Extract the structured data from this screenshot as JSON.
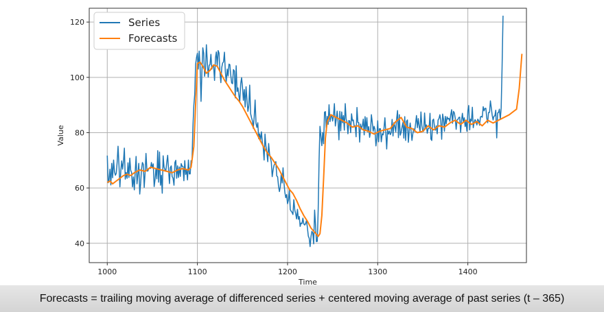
{
  "caption": "Forecasts = trailing moving average of differenced series + centered moving average of past series (t – 365)",
  "chart_data": {
    "type": "line",
    "xlabel": "Time",
    "ylabel": "Value",
    "xlim": [
      980,
      1465
    ],
    "ylim": [
      33,
      125
    ],
    "xticks": [
      1000,
      1100,
      1200,
      1300,
      1400
    ],
    "yticks": [
      40,
      60,
      80,
      100,
      120
    ],
    "grid": true,
    "legend_placement": "top-left",
    "series": [
      {
        "name": "Series",
        "color": "#1f77b4",
        "x_start": 1000,
        "x_step": 1,
        "values": [
          71.7,
          61.9,
          63.0,
          66.8,
          61.1,
          68.9,
          63.7,
          70.1,
          65.9,
          64.6,
          65.3,
          69.4,
          75.1,
          68.4,
          60.4,
          66.1,
          69.8,
          66.8,
          69.6,
          74.4,
          63.2,
          65.6,
          63.5,
          69.1,
          63.8,
          70.8,
          66.4,
          65.6,
          60.4,
          64.0,
          59.3,
          66.1,
          71.4,
          61.5,
          64.8,
          68.9,
          57.8,
          61.6,
          66.8,
          69.2,
          68.5,
          60.2,
          65.5,
          72.5,
          66.2,
          66.1,
          67.1,
          67.1,
          67.1,
          69.2,
          67.3,
          68.7,
          60.5,
          63.0,
          67.1,
          63.3,
          73.5,
          62.1,
          73.0,
          61.0,
          64.6,
          58.1,
          71.6,
          67.6,
          66.6,
          66.1,
          69.3,
          71.8,
          66.5,
          61.6,
          67.4,
          68.0,
          64.1,
          63.6,
          61.0,
          69.2,
          70.0,
          63.5,
          68.0,
          63.8,
          67.6,
          64.2,
          68.8,
          67.9,
          67.8,
          62.6,
          69.9,
          64.9,
          66.6,
          62.9,
          70.1,
          65.1,
          65.1,
          69.9,
          69.2,
          81.6,
          89.8,
          93.8,
          104.7,
          107.1,
          108.7,
          103.0,
          109.5,
          104.2,
          91.3,
          102.1,
          110.7,
          108.7,
          100.4,
          102.8,
          111.8,
          105.3,
          100.1,
          104.3,
          104.7,
          108.3,
          103.0,
          104.2,
          104.1,
          98.9,
          107.0,
          109.2,
          104.1,
          109.7,
          108.8,
          102.2,
          98.1,
          103.6,
          105.2,
          105.6,
          109.1,
          102.1,
          98.3,
          103.0,
          100.5,
          104.8,
          104.6,
          100.8,
          98.0,
          97.7,
          102.8,
          102.3,
          92.6,
          104.2,
          94.9,
          96.2,
          93.5,
          91.2,
          97.7,
          99.9,
          96.4,
          91.7,
          95.6,
          89.3,
          96.6,
          92.0,
          87.7,
          89.7,
          97.2,
          86.9,
          85.5,
          84.3,
          81.6,
          85.8,
          91.8,
          83.4,
          81.9,
          83.6,
          77.8,
          79.6,
          77.4,
          80.3,
          76.5,
          74.7,
          70.1,
          79.5,
          75.2,
          73.2,
          69.5,
          76.1,
          72.4,
          70.9,
          69.3,
          64.1,
          66.5,
          68.2,
          68.8,
          69.5,
          64.4,
          64.0,
          60.7,
          58.7,
          60.4,
          65.3,
          61.8,
          67.3,
          62.0,
          58.5,
          56.5,
          57.6,
          54.3,
          55.7,
          59.5,
          52.2,
          51.6,
          51.2,
          50.4,
          55.8,
          52.0,
          50.7,
          48.8,
          52.3,
          48.7,
          49.7,
          46.1,
          47.3,
          47.1,
          49.1,
          47.0,
          46.6,
          47.1,
          48.2,
          45.8,
          42.6,
          41.8,
          38.8,
          42.4,
          44.3,
          43.8,
          39.8,
          52.0,
          46.8,
          40.6,
          40.7,
          52.3,
          70.2,
          82.3,
          78.9,
          75.3,
          80.1,
          76.0,
          87.4,
          87.6,
          80.6,
          85.9,
          83.0,
          90.1,
          84.0,
          85.7,
          86.4,
          84.2,
          86.1,
          90.5,
          82.4,
          84.9,
          87.8,
          84.2,
          77.4,
          87.7,
          80.6,
          87.5,
          83.6,
          86.2,
          80.9,
          90.5,
          84.9,
          83.9,
          79.6,
          84.4,
          84.2,
          80.0,
          86.8,
          84.3,
          84.6,
          82.1,
          82.5,
          78.5,
          89.1,
          83.7,
          83.6,
          76.6,
          83.1,
          81.3,
          82.6,
          84.9,
          79.2,
          85.8,
          80.9,
          85.4,
          80.3,
          82.2,
          78.3,
          80.2,
          86.5,
          83.7,
          80.5,
          82.3,
          81.2,
          75.2,
          78.0,
          84.3,
          76.7,
          81.4,
          81.4,
          76.7,
          79.6,
          79.2,
          81.7,
          85.4,
          80.1,
          74.1,
          80.9,
          79.5,
          80.6,
          79.3,
          80.1,
          84.8,
          78.8,
          83.6,
          82.4,
          80.3,
          85.1,
          88.0,
          78.2,
          86.5,
          79.1,
          80.1,
          82.1,
          83.7,
          78.0,
          85.8,
          77.2,
          84.1,
          84.6,
          76.5,
          80.8,
          83.5,
          80.6,
          77.2,
          79.7,
          81.4,
          80.4,
          83.3,
          86.2,
          81.8,
          85.1,
          82.3,
          80.3,
          87.5,
          82.6,
          80.6,
          80.5,
          87.1,
          81.7,
          82.8,
          79.8,
          81.5,
          81.6,
          87.0,
          77.7,
          77.2,
          84.5,
          84.9,
          82.2,
          80.9,
          82.5,
          79.6,
          84.6,
          85.1,
          86.5,
          84.4,
          77.6,
          86.7,
          84.8,
          80.5,
          85.9,
          83.2,
          85.7,
          84.9,
          85.2,
          84.1,
          86.5,
          88.3,
          83.4,
          87.7,
          87.2,
          85.3,
          81.2,
          84.6,
          84.8,
          85.5,
          85.6,
          80.1,
          84.3,
          87.0,
          83.7,
          85.4,
          82.2,
          84.0,
          80.5,
          87.8,
          89.8,
          81.0,
          84.9,
          84.2,
          89.2,
          81.8,
          83.7,
          84.7,
          84.1,
          82.8,
          84.9,
          84.3,
          82.7,
          85.7,
          85.9,
          85.6,
          89.4,
          87.9,
          88.8,
          88.8,
          85.2,
          83.6,
          87.3,
          87.3,
          91.5,
          89.0,
          86.3,
          84.6,
          86.0,
          86.1,
          88.1,
          78.1,
          87.1,
          87.3,
          88.5,
          84.8,
          89.0,
          103.6,
          122.3
        ]
      },
      {
        "name": "Forecasts",
        "color": "#ff7f0e",
        "x": [
          1000,
          1003,
          1006,
          1010,
          1014,
          1018,
          1022,
          1026,
          1030,
          1036,
          1042,
          1048,
          1054,
          1060,
          1066,
          1072,
          1078,
          1084,
          1090,
          1093,
          1096,
          1098,
          1100,
          1103,
          1106,
          1110,
          1114,
          1118,
          1122,
          1126,
          1130,
          1134,
          1138,
          1142,
          1146,
          1150,
          1154,
          1158,
          1162,
          1166,
          1170,
          1174,
          1178,
          1182,
          1186,
          1190,
          1194,
          1198,
          1202,
          1206,
          1210,
          1214,
          1218,
          1222,
          1226,
          1230,
          1234,
          1236,
          1238,
          1240,
          1242,
          1244,
          1248,
          1254,
          1260,
          1266,
          1272,
          1278,
          1284,
          1290,
          1296,
          1302,
          1308,
          1314,
          1320,
          1326,
          1332,
          1338,
          1344,
          1350,
          1356,
          1362,
          1368,
          1374,
          1380,
          1386,
          1392,
          1398,
          1404,
          1410,
          1416,
          1422,
          1428,
          1434,
          1440,
          1446,
          1450,
          1454,
          1457,
          1460
        ],
        "values": [
          62.0,
          62.5,
          61.5,
          62.5,
          63.5,
          64.5,
          65.0,
          64.5,
          65.5,
          66.5,
          66.0,
          67.5,
          67.0,
          66.5,
          66.0,
          65.5,
          66.5,
          67.0,
          66.5,
          67.5,
          75.0,
          90.0,
          105.0,
          105.5,
          104.0,
          101.5,
          102.5,
          104.5,
          104.0,
          101.5,
          99.0,
          97.0,
          95.0,
          93.0,
          91.5,
          89.5,
          87.0,
          84.5,
          82.0,
          79.5,
          77.0,
          74.5,
          72.5,
          71.0,
          69.0,
          67.0,
          64.5,
          62.0,
          59.5,
          58.0,
          55.5,
          52.5,
          50.0,
          48.0,
          45.5,
          44.0,
          42.5,
          43.5,
          50.0,
          63.5,
          78.0,
          84.0,
          86.5,
          85.5,
          84.5,
          83.5,
          82.0,
          82.5,
          81.0,
          80.5,
          79.5,
          80.5,
          81.0,
          81.5,
          84.0,
          85.5,
          82.0,
          81.5,
          80.0,
          80.5,
          82.5,
          81.0,
          82.5,
          82.0,
          83.5,
          84.5,
          83.0,
          84.5,
          83.0,
          84.0,
          82.5,
          84.5,
          83.5,
          84.5,
          85.5,
          86.5,
          87.5,
          88.5,
          96.0,
          108.5
        ]
      }
    ]
  }
}
